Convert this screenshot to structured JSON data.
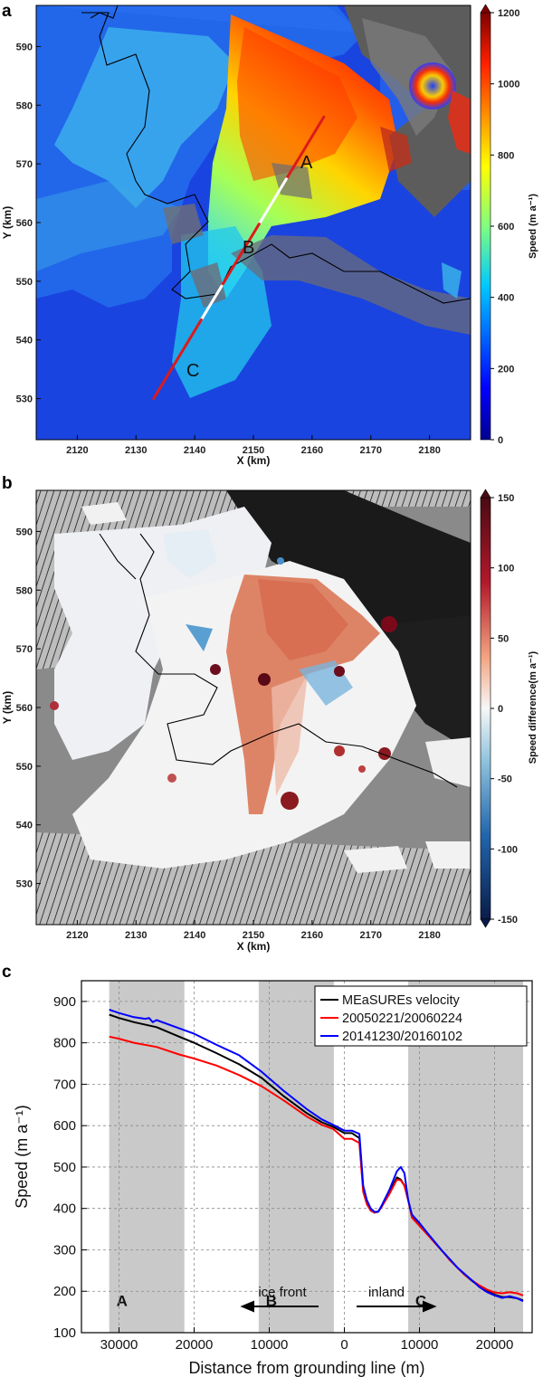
{
  "panel_a": {
    "label": "a",
    "x_ticks": [
      "2120",
      "2130",
      "2140",
      "2150",
      "2160",
      "2170",
      "2180"
    ],
    "y_ticks": [
      "590",
      "580",
      "570",
      "560",
      "550",
      "540",
      "530"
    ],
    "xlabel": "X (km)",
    "ylabel": "Y (km)",
    "colorbar": {
      "ticks": [
        "1200",
        "1000",
        "800",
        "600",
        "400",
        "200",
        "0"
      ],
      "title": "Speed (m a⁻¹)"
    },
    "segment_labels": [
      "A",
      "B",
      "C"
    ]
  },
  "panel_b": {
    "label": "b",
    "x_ticks": [
      "2120",
      "2130",
      "2140",
      "2150",
      "2160",
      "2170",
      "2180"
    ],
    "y_ticks": [
      "590",
      "580",
      "570",
      "560",
      "550",
      "540",
      "530"
    ],
    "xlabel": "X (km)",
    "ylabel": "Y (km)",
    "colorbar": {
      "ticks": [
        "150",
        "100",
        "50",
        "0",
        "-50",
        "-100",
        "-150"
      ],
      "title": "Speed difference(m a⁻¹)"
    }
  },
  "panel_c": {
    "label": "c",
    "annotations": {
      "left": "ice front",
      "right": "inland"
    },
    "band_labels": [
      "A",
      "B",
      "C"
    ]
  },
  "chart_data": [
    {
      "type": "heatmap",
      "panel": "a",
      "xlabel": "X (km)",
      "ylabel": "Y (km)",
      "xlim": [
        2113,
        2187
      ],
      "ylim": [
        523,
        597
      ],
      "colorbar": {
        "label": "Speed (m a-1)",
        "range": [
          0,
          1200
        ]
      },
      "profile_line": {
        "start": [
          2133,
          530
        ],
        "end": [
          2162,
          578
        ],
        "segments": [
          "A",
          "B",
          "C"
        ]
      }
    },
    {
      "type": "heatmap",
      "panel": "b",
      "xlabel": "X (km)",
      "ylabel": "Y (km)",
      "xlim": [
        2113,
        2187
      ],
      "ylim": [
        523,
        597
      ],
      "colorbar": {
        "label": "Speed difference(m a-1)",
        "range": [
          -150,
          150
        ]
      }
    },
    {
      "type": "line",
      "panel": "c",
      "xlabel": "Distance from grounding line (m)",
      "ylabel": "Speed (m a⁻¹)",
      "xlim": [
        -35000,
        25000
      ],
      "ylim": [
        100,
        950
      ],
      "x_tick_values": [
        -30000,
        -20000,
        -10000,
        0,
        10000,
        20000
      ],
      "x_tick_labels": [
        "30000",
        "20000",
        "10000",
        "0",
        "10000",
        "20000"
      ],
      "y_ticks": [
        100,
        200,
        300,
        400,
        500,
        600,
        700,
        800,
        900
      ],
      "grid": true,
      "legend_position": "top-right",
      "bands": [
        {
          "label": "A",
          "range": [
            -31300,
            -21300
          ]
        },
        {
          "label": "B",
          "range": [
            -11400,
            -1400
          ]
        },
        {
          "label": "C",
          "range": [
            8500,
            23800
          ]
        }
      ],
      "series": [
        {
          "name": "MEaSUREs velocity",
          "color": "#000000",
          "x": [
            -31300,
            -30000,
            -28000,
            -25000,
            -22000,
            -20000,
            -17000,
            -14000,
            -11000,
            -8000,
            -5000,
            -3000,
            -1500,
            0,
            1000,
            2000,
            2500,
            3000,
            3500,
            4000,
            4500,
            5000,
            6000,
            7000,
            7500,
            8000,
            8500,
            9000,
            10000,
            11000,
            12000,
            13000,
            14000,
            15000,
            16000,
            17000,
            18000,
            19000,
            20000,
            21000,
            22000,
            23000,
            23800
          ],
          "y": [
            868,
            860,
            850,
            838,
            815,
            800,
            775,
            748,
            715,
            670,
            630,
            608,
            597,
            582,
            582,
            570,
            450,
            415,
            395,
            390,
            392,
            405,
            440,
            475,
            470,
            455,
            420,
            380,
            360,
            340,
            318,
            298,
            278,
            258,
            240,
            225,
            212,
            200,
            192,
            186,
            186,
            183,
            178
          ]
        },
        {
          "name": "20050221/20060224",
          "color": "#ff0000",
          "x": [
            -31300,
            -30000,
            -28000,
            -25000,
            -22000,
            -20000,
            -17000,
            -14000,
            -11000,
            -8000,
            -5000,
            -3000,
            -1500,
            0,
            1000,
            2000,
            2500,
            3000,
            3500,
            4000,
            4500,
            5000,
            6000,
            7000,
            7500,
            8000,
            8500,
            9000,
            10000,
            11000,
            12000,
            13000,
            14000,
            15000,
            16000,
            17000,
            18000,
            19000,
            20000,
            21000,
            22000,
            23000,
            23800
          ],
          "y": [
            815,
            810,
            800,
            790,
            772,
            762,
            745,
            722,
            695,
            660,
            622,
            602,
            592,
            568,
            568,
            558,
            440,
            410,
            395,
            390,
            393,
            405,
            435,
            470,
            468,
            455,
            420,
            378,
            358,
            338,
            318,
            298,
            276,
            258,
            240,
            226,
            214,
            204,
            197,
            195,
            198,
            195,
            190
          ]
        },
        {
          "name": "20141230/20160102",
          "color": "#0000ff",
          "x": [
            -31300,
            -30000,
            -28000,
            -26500,
            -26000,
            -25500,
            -25000,
            -22000,
            -20000,
            -17000,
            -14000,
            -11000,
            -8000,
            -5000,
            -3000,
            -1500,
            0,
            1000,
            2000,
            2500,
            3000,
            3500,
            4000,
            4500,
            5000,
            6000,
            7000,
            7500,
            8000,
            8500,
            9000,
            10000,
            11000,
            12000,
            13000,
            14000,
            15000,
            16000,
            17000,
            18000,
            19000,
            20000,
            21000,
            22000,
            23000,
            23800
          ],
          "y": [
            880,
            872,
            862,
            858,
            860,
            850,
            855,
            835,
            822,
            795,
            770,
            730,
            683,
            640,
            615,
            602,
            588,
            588,
            580,
            455,
            420,
            400,
            392,
            392,
            408,
            445,
            490,
            500,
            485,
            420,
            385,
            365,
            342,
            320,
            298,
            278,
            258,
            242,
            226,
            210,
            198,
            190,
            184,
            188,
            183,
            176
          ]
        }
      ]
    }
  ]
}
